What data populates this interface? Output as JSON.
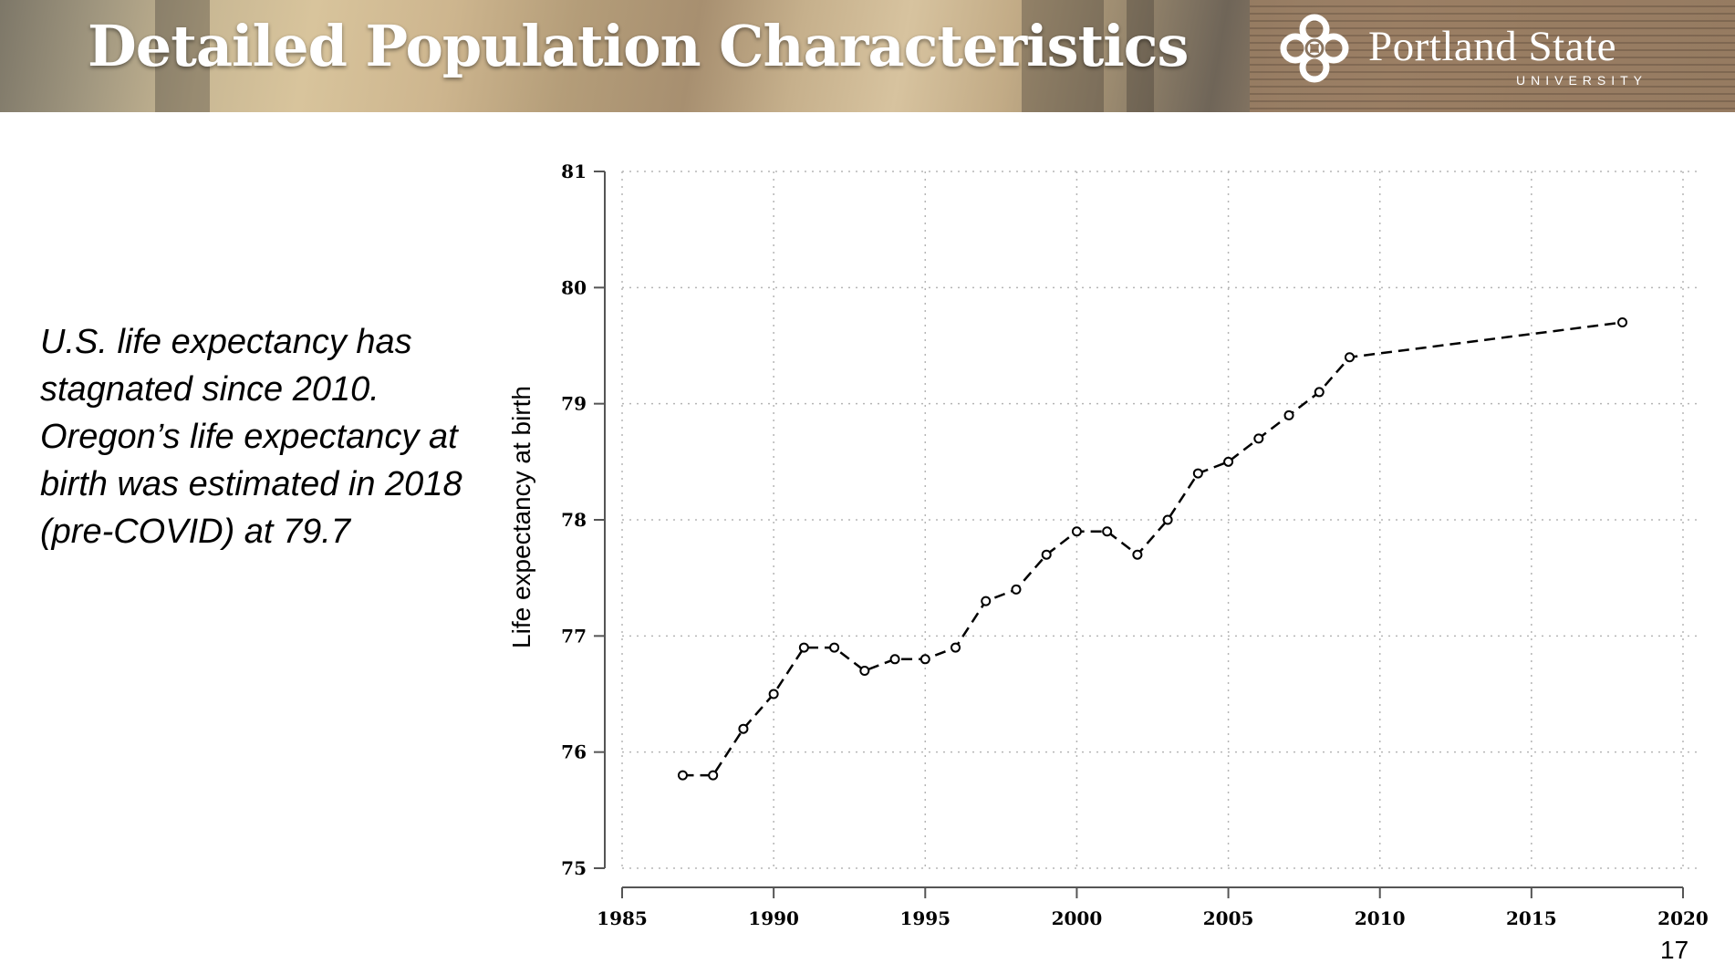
{
  "slide": {
    "title": "Detailed Population Characteristics",
    "logo": {
      "name": "Portland State",
      "subtitle": "UNIVERSITY",
      "icon": "psu-knot-logo-icon"
    },
    "body_text": "U.S. life expectancy has stagnated since 2010. Oregon’s life expectancy at birth was estimated in 2018 (pre-COVID) at 79.7",
    "page_number": "17"
  },
  "colors": {
    "title_text": "#ffffff",
    "line": "#000000",
    "grid": "#b5b5b5",
    "axis": "#555555"
  },
  "chart_data": {
    "type": "line",
    "title": "",
    "xlabel": "",
    "ylabel": "Life expectancy at birth",
    "xlim": [
      1985,
      2020
    ],
    "ylim": [
      75,
      81
    ],
    "x_ticks": [
      1985,
      1990,
      1995,
      2000,
      2005,
      2010,
      2015,
      2020
    ],
    "y_ticks": [
      75,
      76,
      77,
      78,
      79,
      80,
      81
    ],
    "grid": true,
    "line_style": "dashed",
    "marker": "open-circle",
    "series": [
      {
        "name": "Oregon life expectancy at birth",
        "x": [
          1987,
          1988,
          1989,
          1990,
          1991,
          1992,
          1993,
          1994,
          1995,
          1996,
          1997,
          1998,
          1999,
          2000,
          2001,
          2002,
          2003,
          2004,
          2005,
          2006,
          2007,
          2008,
          2009,
          2018
        ],
        "values": [
          75.8,
          75.8,
          76.2,
          76.5,
          76.9,
          76.9,
          76.7,
          76.8,
          76.8,
          76.9,
          77.3,
          77.4,
          77.7,
          77.9,
          77.9,
          77.7,
          78.0,
          78.4,
          78.5,
          78.7,
          78.9,
          79.1,
          79.4,
          79.7
        ]
      }
    ]
  }
}
